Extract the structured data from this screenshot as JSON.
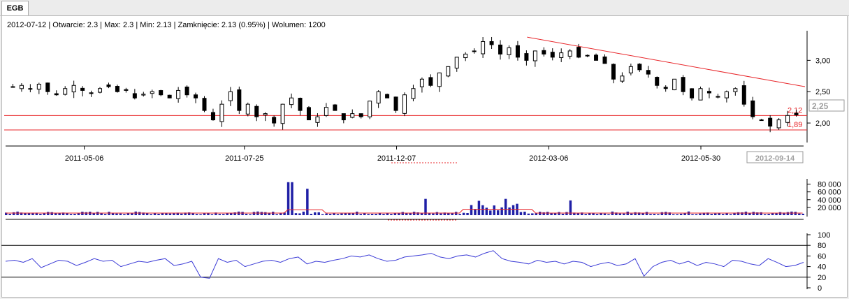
{
  "window": {
    "tab_label": "EGB"
  },
  "header": {
    "date": "2012-07-12",
    "open_label": "Otwarcie:",
    "open": "2.3",
    "max_label": "Max:",
    "max": "2.3",
    "min_label": "Min:",
    "min": "2.13",
    "close_label": "Zamknięcie:",
    "close": "2.13",
    "change": "(0.95%)",
    "volume_label": "Wolumen:",
    "volume": "1200"
  },
  "colors": {
    "candle": "#000000",
    "hline": "#e8262a",
    "trend": "#e8262a",
    "volume_bar": "#1f1fa6",
    "volume_ma": "#e8262a",
    "rsi": "#3a3ad6",
    "axis": "#000000"
  },
  "chart_data": [
    {
      "type": "candlestick",
      "x_dates": [
        "2011-05-06",
        "2011-07-25",
        "2011-12-07",
        "2012-03-06",
        "2012-05-30"
      ],
      "x_range_label": "2012-09-14",
      "ylim": [
        1.7,
        3.45
      ],
      "y_ticks": [
        2.0,
        2.5,
        3.0
      ],
      "y_tick_labels": [
        "2,00",
        "2,50",
        "3,00"
      ],
      "price_label": "2,25",
      "hlines": [
        {
          "value": 2.12,
          "label": "2,12"
        },
        {
          "value": 1.89,
          "label": "1,89"
        }
      ],
      "trendline": {
        "from": [
          0.653,
          3.37
        ],
        "to": [
          1.0,
          2.58
        ]
      },
      "series_approx_close": [
        2.58,
        2.6,
        2.55,
        2.62,
        2.5,
        2.45,
        2.55,
        2.6,
        2.52,
        2.47,
        2.55,
        2.58,
        2.5,
        2.52,
        2.4,
        2.46,
        2.5,
        2.45,
        2.4,
        2.52,
        2.45,
        2.4,
        2.2,
        2.05,
        2.3,
        2.5,
        2.2,
        2.3,
        2.1,
        2.15,
        2.0,
        2.3,
        2.4,
        2.2,
        2.05,
        2.1,
        2.25,
        2.2,
        2.05,
        2.15,
        2.1,
        2.35,
        2.5,
        2.4,
        2.2,
        2.45,
        2.55,
        2.7,
        2.6,
        2.8,
        2.9,
        3.05,
        3.1,
        3.15,
        3.3,
        3.25,
        3.1,
        3.2,
        3.05,
        3.0,
        3.15,
        3.1,
        3.05,
        3.12,
        3.15,
        3.05,
        3.08,
        3.0,
        2.95,
        2.7,
        2.75,
        2.9,
        2.85,
        2.78,
        2.6,
        2.55,
        2.7,
        2.5,
        2.4,
        2.55,
        2.48,
        2.42,
        2.5,
        2.55,
        2.3,
        2.1,
        2.05,
        1.95,
        2.05,
        2.12,
        2.13
      ]
    },
    {
      "type": "bar",
      "title": "",
      "y_ticks": [
        20000,
        40000,
        60000,
        80000
      ],
      "y_tick_labels": [
        "20 000",
        "40 000",
        "60 000",
        "80 000"
      ],
      "ylim": [
        0,
        90000
      ],
      "spikes": [
        {
          "at": 0.355,
          "value": 85000
        },
        {
          "at": 0.375,
          "value": 68000
        },
        {
          "at": 0.522,
          "value": 42000
        },
        {
          "at": 0.59,
          "value": 37000
        },
        {
          "at": 0.625,
          "value": 42000
        },
        {
          "at": 0.706,
          "value": 38000
        }
      ],
      "baseline_volume": 5000
    },
    {
      "type": "line",
      "title": "",
      "ylim": [
        0,
        100
      ],
      "y_ticks": [
        0,
        20,
        40,
        60,
        80,
        100
      ],
      "y_tick_labels": [
        "0",
        "20",
        "40",
        "60",
        "80",
        "100"
      ],
      "levels": [
        20,
        80
      ],
      "values": [
        50,
        52,
        48,
        55,
        38,
        45,
        52,
        50,
        42,
        48,
        55,
        50,
        52,
        40,
        45,
        50,
        48,
        52,
        55,
        42,
        45,
        50,
        20,
        18,
        55,
        48,
        52,
        40,
        45,
        50,
        52,
        48,
        55,
        58,
        45,
        50,
        48,
        52,
        55,
        60,
        58,
        62,
        55,
        50,
        52,
        58,
        60,
        62,
        65,
        58,
        55,
        60,
        62,
        58,
        65,
        70,
        55,
        50,
        48,
        45,
        52,
        48,
        50,
        45,
        50,
        48,
        40,
        45,
        48,
        42,
        45,
        55,
        22,
        40,
        48,
        52,
        45,
        50,
        42,
        48,
        45,
        40,
        52,
        50,
        45,
        42,
        55,
        48,
        40,
        42,
        48
      ]
    }
  ]
}
